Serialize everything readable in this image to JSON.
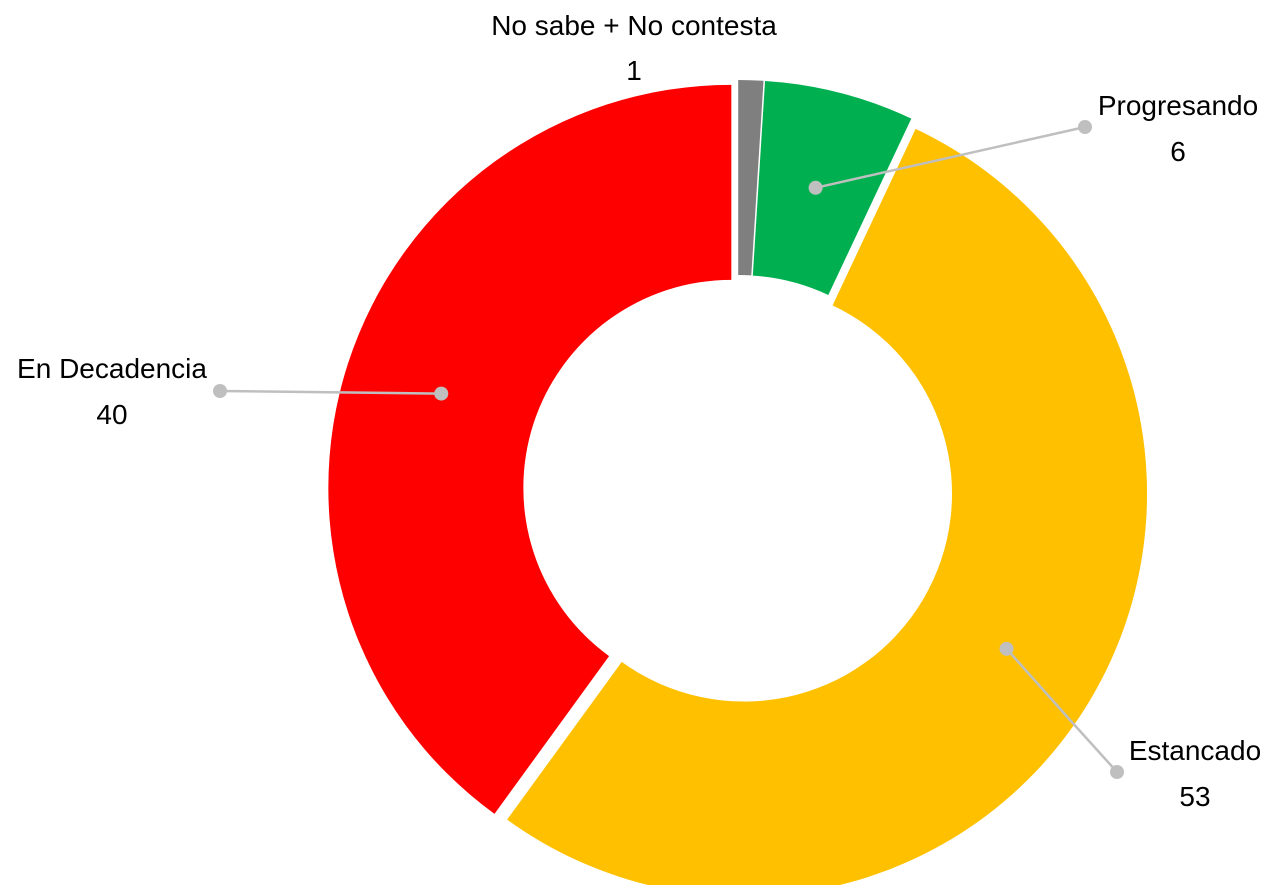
{
  "chart_data": {
    "type": "pie",
    "variant": "donut",
    "title": "",
    "categories": [
      "No sabe + No contesta",
      "Progresando",
      "Estancado",
      "En Decadencia"
    ],
    "values": [
      1,
      6,
      53,
      40
    ],
    "value_labels": [
      "1",
      "6",
      "53",
      "40"
    ],
    "colors": [
      "#7f7f7f",
      "#00b050",
      "#ffc000",
      "#ff0000"
    ],
    "leader_line_color": "#bfbfbf",
    "legend": "none (data labels with leader lines)"
  }
}
